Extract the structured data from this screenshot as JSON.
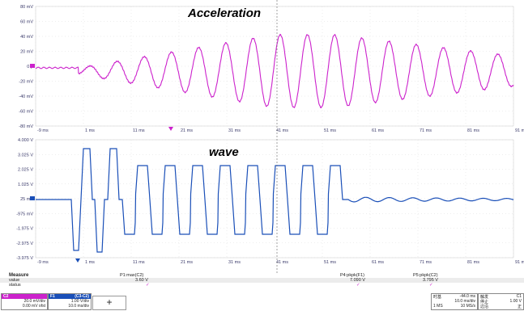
{
  "top_panel": {
    "title": "Acceleration",
    "y_labels": [
      "80 mV",
      "60 mV",
      "40 mV",
      "20 mV",
      "0 μ",
      "-20 mV",
      "-40 mV",
      "-60 mV",
      "-80 mV"
    ],
    "x_labels": [
      "-9 ms",
      "1 ms",
      "11 ms",
      "21 ms",
      "31 ms",
      "41 ms",
      "51 ms",
      "61 ms",
      "71 ms",
      "81 ms",
      "91 ms"
    ],
    "color": "#cc22cc"
  },
  "bottom_panel": {
    "title": "wave",
    "y_labels": [
      "4.000 V",
      "3.025 V",
      "2.025 V",
      "1.025 V",
      "25 mV",
      "-975 mV",
      "-1.975 V",
      "-2.975 V",
      "-3.975 V"
    ],
    "x_labels": [
      "-9 ms",
      "1 ms",
      "11 ms",
      "21 ms",
      "31 ms",
      "41 ms",
      "51 ms",
      "61 ms",
      "71 ms",
      "81 ms",
      "91 ms"
    ],
    "color": "#1a4fb8"
  },
  "measure": {
    "header": "Measure",
    "row_value_label": "value",
    "row_status_label": "status",
    "p1_name": "P1:max(C2)",
    "p1_value": "3.60 V",
    "p4_name": "P4:pkpk(F1)",
    "p4_value": "7.090 V",
    "p5_name": "P5:pkpk(C2)",
    "p5_value": "3.795 V",
    "check": "✓"
  },
  "channels": [
    {
      "name": "C2",
      "line1": "20.0 mV/div",
      "line2": "0.00 mV ofst",
      "color": "#cc22cc"
    },
    {
      "name": "F1",
      "line1": "1.00 V/div",
      "line2": "10.0 ms/div",
      "color": "#1a4fb8"
    }
  ],
  "channel_extra": "(C3-C2)",
  "cursor_symbol": "+",
  "timebase": {
    "label": "时基",
    "delay": "-44.0 ms",
    "line1": "10.0 ms/div",
    "line2": "10 MS/s",
    "m_label": "1 MS",
    "trigger_label": "触发",
    "trig_ch": "C1",
    "trig_mode": "停止",
    "trig_val": "1.00 V",
    "trig_edge": "边沿",
    "trig_slope": "正"
  }
}
